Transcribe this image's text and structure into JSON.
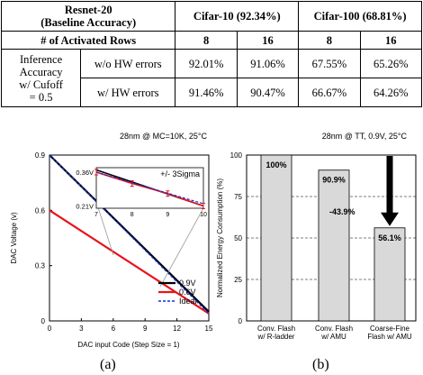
{
  "table": {
    "corner_line1": "Resnet-20",
    "corner_line2": "(Baseline Accuracy)",
    "cifar10_header": "Cifar-10 (92.34%)",
    "cifar100_header": "Cifar-100 (68.81%)",
    "rows_label": "# of Activated Rows",
    "rows_values": [
      "8",
      "16",
      "8",
      "16"
    ],
    "metric_label": [
      "Inference",
      "Accuracy",
      "w/ Cufoff",
      "= 0.5"
    ],
    "rows": [
      {
        "label": "w/o HW errors",
        "values": [
          "92.01%",
          "91.06%",
          "67.55%",
          "65.26%"
        ]
      },
      {
        "label": "w/ HW errors",
        "values": [
          "91.46%",
          "90.47%",
          "66.67%",
          "64.26%"
        ]
      }
    ]
  },
  "chart_data": [
    {
      "type": "line",
      "annotation": "28nm @ MC=10K, 25°C",
      "xlabel": "DAC input Code (Step Size = 1)",
      "ylabel": "DAC Voltage (v)",
      "xlim": [
        0,
        15
      ],
      "ylim": [
        0,
        0.9
      ],
      "xticks": [
        0,
        3,
        6,
        9,
        12,
        15
      ],
      "yticks": [
        0,
        0.3,
        0.6,
        0.9
      ],
      "xtick_labels": [
        "0",
        "3",
        "6",
        "9",
        "12",
        "15"
      ],
      "ytick_labels": [
        "0",
        "0.3",
        "0.6",
        "0.9"
      ],
      "series": [
        {
          "name": "0.9V",
          "color": "#000000",
          "x": [
            0,
            15
          ],
          "y": [
            0.9,
            0.05
          ]
        },
        {
          "name": "0.6V",
          "color": "#e8141c",
          "x": [
            0,
            15
          ],
          "y": [
            0.6,
            0.04
          ]
        },
        {
          "name": "Ideal",
          "color": "#1a2fd6",
          "style": "dashed",
          "x": [
            0,
            15
          ],
          "y": [
            0.9,
            0.04
          ]
        }
      ],
      "legend_position": "bottom-right",
      "inset": {
        "xlim": [
          7,
          10
        ],
        "ylim": [
          0.2,
          0.38
        ],
        "xticks": [
          "7",
          "8",
          "9",
          "10"
        ],
        "ytick_labels": [
          "0.36V",
          "0.21V"
        ],
        "annotation": "+/- 3Sigma",
        "series": [
          {
            "name": "0.9V",
            "color": "#000000",
            "x": [
              7,
              10
            ],
            "y": [
              0.37,
              0.21
            ]
          },
          {
            "name": "0.6V",
            "color": "#e8141c",
            "x": [
              7,
              8,
              9,
              10
            ],
            "y": [
              0.36,
              0.31,
              0.265,
              0.21
            ]
          },
          {
            "name": "Ideal",
            "color": "#1a2fd6",
            "style": "dashed",
            "x": [
              7,
              10
            ],
            "y": [
              0.36,
              0.22
            ]
          }
        ]
      }
    },
    {
      "type": "bar",
      "annotation": "28nm @ TT, 0.9V, 25°C",
      "ylabel": "Normalized Energy Consumption (%)",
      "ylim": [
        0,
        100
      ],
      "yticks": [
        0,
        25,
        50,
        75,
        100
      ],
      "ytick_labels": [
        "0",
        "25",
        "50",
        "75",
        "100"
      ],
      "categories": [
        [
          "Conv. Flash",
          "w/ R-ladder"
        ],
        [
          "Conv. Flash",
          "w/ AMU"
        ],
        [
          "Coarse-Fine",
          "Flash w/ AMU"
        ]
      ],
      "values": [
        100,
        90.9,
        56.1
      ],
      "value_labels": [
        "100%",
        "90.9%",
        "56.1%"
      ],
      "change_label": "-43.9%",
      "grid": "horizontal dashed"
    }
  ],
  "captions": {
    "a": "(a)",
    "b": "(b)"
  }
}
